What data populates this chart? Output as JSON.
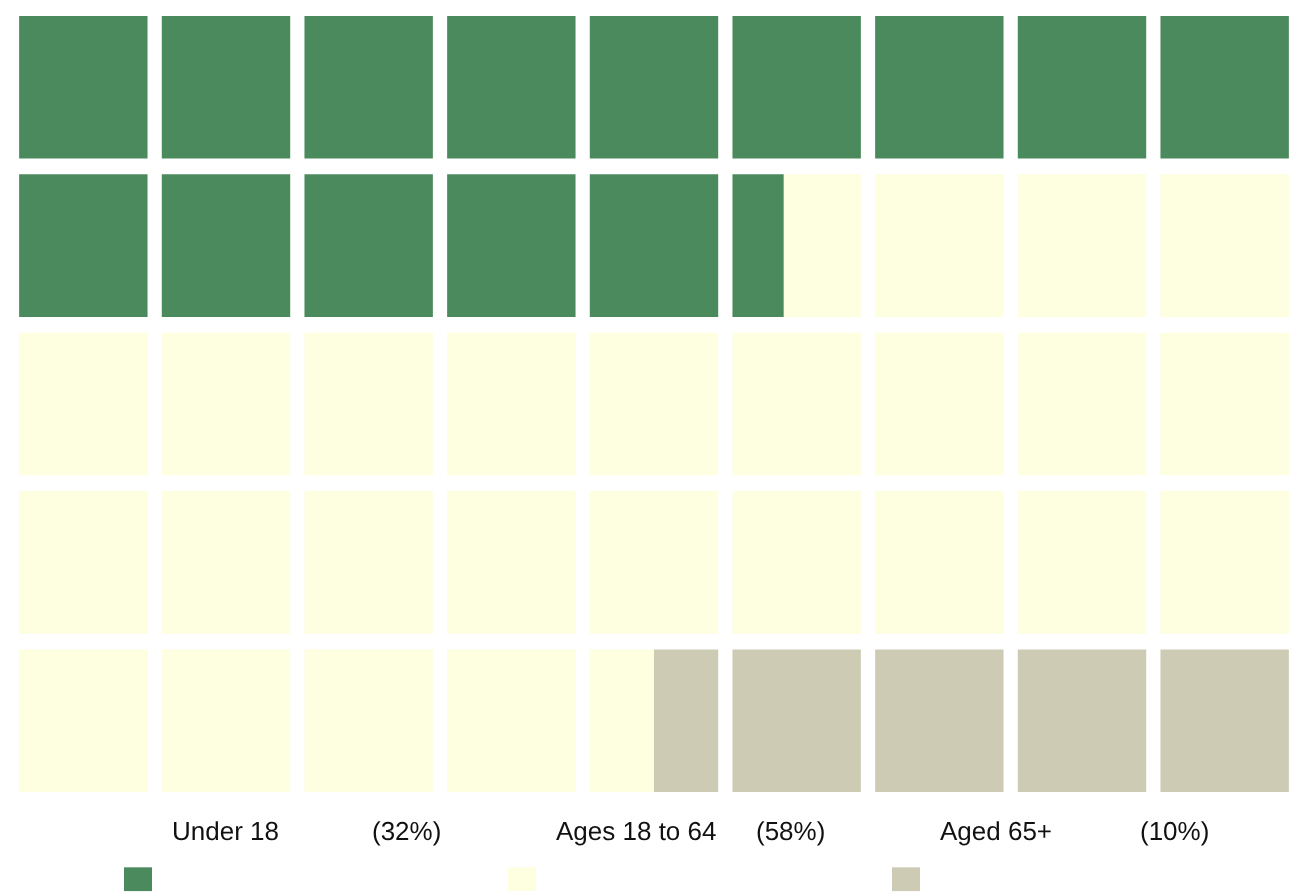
{
  "chart_data": {
    "type": "other",
    "categories": [
      "Under 18",
      "Ages 18 to 64",
      "Aged 65+"
    ],
    "values": [
      32,
      58,
      10
    ],
    "value_labels": [
      "(32%)",
      "(58%)",
      "(10%)"
    ],
    "colors": [
      "#4b8a5c",
      "#fefee0",
      "#cdcbb4"
    ]
  }
}
